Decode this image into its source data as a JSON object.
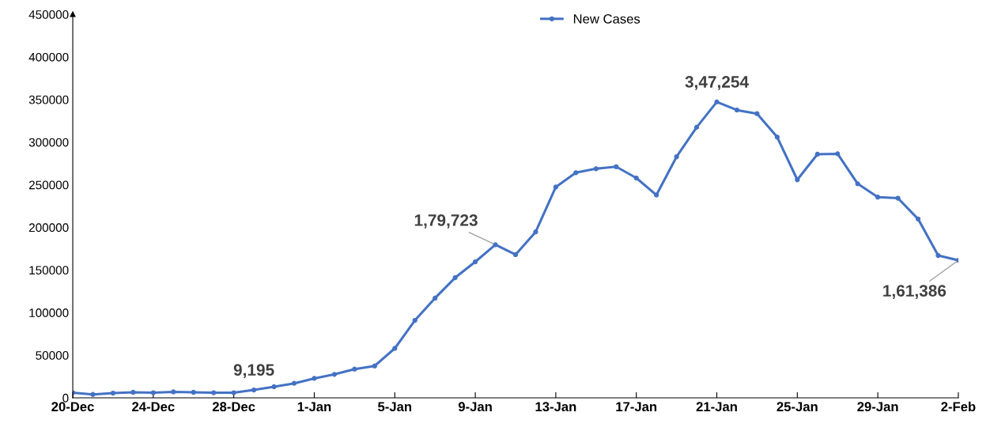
{
  "chart_data": {
    "type": "line",
    "categories": [
      "20-Dec",
      null,
      null,
      null,
      "24-Dec",
      null,
      null,
      null,
      "28-Dec",
      null,
      null,
      null,
      "1-Jan",
      null,
      null,
      null,
      "5-Jan",
      null,
      null,
      null,
      "9-Jan",
      null,
      null,
      null,
      "13-Jan",
      null,
      null,
      null,
      "17-Jan",
      null,
      null,
      null,
      "21-Jan",
      null,
      null,
      null,
      "25-Jan",
      null,
      null,
      null,
      "29-Jan",
      null,
      null,
      null,
      "2-Feb"
    ],
    "series": [
      {
        "name": "New Cases",
        "color": "#4472c4",
        "values": [
          6000,
          4000,
          5500,
          6500,
          6000,
          7000,
          6500,
          6000,
          6000,
          9195,
          13000,
          17000,
          22800,
          27500,
          33700,
          37400,
          58000,
          90900,
          117000,
          141000,
          159600,
          179723,
          168000,
          194700,
          247400,
          264200,
          268800,
          271200,
          258000,
          238000,
          282900,
          317500,
          347254,
          337700,
          333500,
          306000,
          255900,
          285900,
          286400,
          251200,
          235500,
          234300,
          209900,
          167000,
          161386
        ],
        "value_labels": [
          null,
          null,
          null,
          null,
          null,
          null,
          null,
          null,
          null,
          "9,195",
          null,
          null,
          null,
          null,
          null,
          null,
          null,
          null,
          null,
          null,
          null,
          "1,79,723",
          null,
          null,
          null,
          null,
          null,
          null,
          null,
          null,
          null,
          null,
          "3,47,254",
          null,
          null,
          null,
          null,
          null,
          null,
          null,
          null,
          null,
          null,
          null,
          "1,61,386"
        ]
      }
    ],
    "ylim": [
      0,
      450000
    ],
    "yticks": [
      0,
      50000,
      100000,
      150000,
      200000,
      250000,
      300000,
      350000,
      400000,
      450000
    ],
    "grid": false,
    "legend": "top",
    "marker": "circle",
    "line_style": "solid"
  }
}
